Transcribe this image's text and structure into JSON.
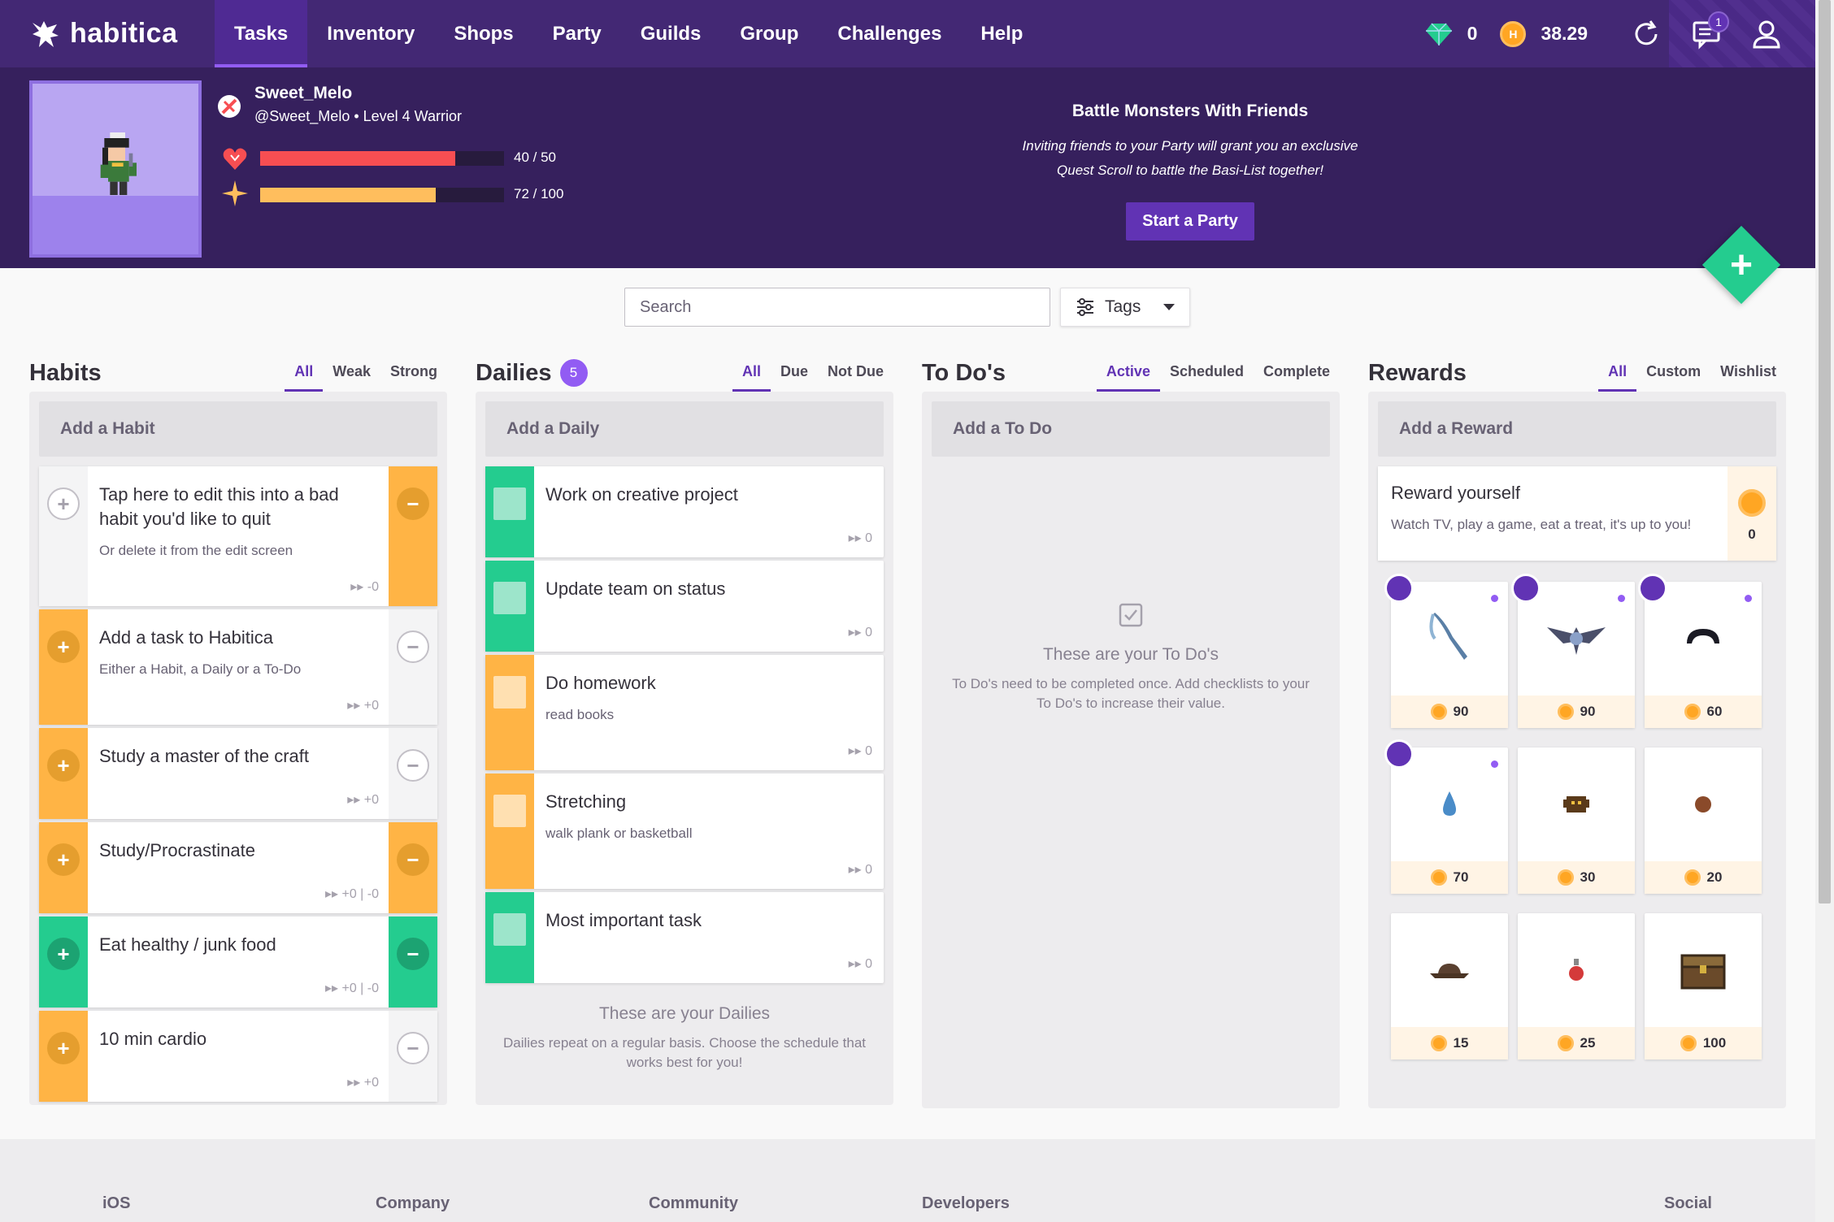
{
  "brand": {
    "name": "habitica"
  },
  "nav": {
    "items": [
      {
        "label": "Tasks"
      },
      {
        "label": "Inventory"
      },
      {
        "label": "Shops"
      },
      {
        "label": "Party"
      },
      {
        "label": "Guilds"
      },
      {
        "label": "Group"
      },
      {
        "label": "Challenges"
      },
      {
        "label": "Help"
      }
    ],
    "active": "Tasks",
    "gems": "0",
    "gold": "38.29",
    "notifications_count": "1",
    "icons": [
      "sync-icon",
      "notifications-icon",
      "user-icon"
    ]
  },
  "profile": {
    "name": "Sweet_Melo",
    "subtitle": "@Sweet_Melo • Level 4 Warrior",
    "health": {
      "current": 40,
      "max": 50,
      "label": "40 / 50"
    },
    "experience": {
      "current": 72,
      "max": 100,
      "label": "72 / 100"
    }
  },
  "promo": {
    "title": "Battle Monsters With Friends",
    "line1": "Inviting friends to your Party will grant you an exclusive",
    "line2": "Quest Scroll to battle the Basi-List together!",
    "button": "Start a Party"
  },
  "toolbar": {
    "search_placeholder": "Search",
    "tags_label": "Tags"
  },
  "habits": {
    "title": "Habits",
    "filters": [
      "All",
      "Weak",
      "Strong"
    ],
    "add_label": "Add a Habit",
    "tasks": [
      {
        "text": "Tap here to edit this into a bad habit you'd like to quit",
        "note": "Or delete it from the edit screen",
        "meta": "▸▸ -0"
      },
      {
        "text": "Add a task to Habitica",
        "note": "Either a Habit, a Daily or a To-Do",
        "meta": "▸▸ +0"
      },
      {
        "text": "Study a master of the craft",
        "note": "",
        "meta": "▸▸ +0"
      },
      {
        "text": "Study/Procrastinate",
        "note": "",
        "meta": "▸▸ +0 | -0"
      },
      {
        "text": "Eat healthy / junk food",
        "note": "",
        "meta": "▸▸ +0 | -0"
      },
      {
        "text": "10 min cardio",
        "note": "",
        "meta": "▸▸ +0"
      }
    ]
  },
  "dailies": {
    "title": "Dailies",
    "count": "5",
    "filters": [
      "All",
      "Due",
      "Not Due"
    ],
    "add_label": "Add a Daily",
    "tasks": [
      {
        "text": "Work on creative project",
        "note": "",
        "meta": "▸▸ 0"
      },
      {
        "text": "Update team on status",
        "note": "",
        "meta": "▸▸ 0"
      },
      {
        "text": "Do homework",
        "note": "read books",
        "meta": "▸▸ 0"
      },
      {
        "text": "Stretching",
        "note": "walk plank or basketball",
        "meta": "▸▸ 0"
      },
      {
        "text": "Most important task",
        "note": "",
        "meta": "▸▸ 0"
      }
    ],
    "empty_title": "These are your Dailies",
    "empty_text": "Dailies repeat on a regular basis. Choose the schedule that works best for you!"
  },
  "todos": {
    "title": "To Do's",
    "filters": [
      "Active",
      "Scheduled",
      "Complete"
    ],
    "add_label": "Add a To Do",
    "empty_title": "These are your To Do's",
    "empty_text": "To Do's need to be completed once. Add checklists to your To Do's to increase their value."
  },
  "rewards": {
    "title": "Rewards",
    "filters": [
      "All",
      "Custom",
      "Wishlist"
    ],
    "add_label": "Add a Reward",
    "custom": {
      "title": "Reward yourself",
      "note": "Watch TV, play a game, eat a treat, it's up to you!",
      "price": "0"
    },
    "items": [
      {
        "price": "90",
        "icon": "scythe-icon",
        "limited": true
      },
      {
        "price": "90",
        "icon": "winged-emblem-icon",
        "limited": true
      },
      {
        "price": "60",
        "icon": "headgear-icon",
        "limited": true
      },
      {
        "price": "70",
        "icon": "potion-drop-icon",
        "limited": true
      },
      {
        "price": "30",
        "icon": "critter-icon",
        "limited": false
      },
      {
        "price": "20",
        "icon": "orb-icon",
        "limited": false
      },
      {
        "price": "15",
        "icon": "hat-icon",
        "limited": false
      },
      {
        "price": "25",
        "icon": "health-potion-icon",
        "limited": false
      },
      {
        "price": "100",
        "icon": "treasure-chest-icon",
        "limited": false
      }
    ]
  },
  "footer": {
    "links": [
      "iOS",
      "Company",
      "Community",
      "Developers",
      "Social"
    ]
  },
  "colors": {
    "nav_bg": "#432874",
    "header_bg": "#36205d",
    "accent": "#6133b4",
    "green": "#24cc8f",
    "orange": "#ffb445",
    "health": "#f74e52",
    "experience": "#ffbe5d"
  }
}
